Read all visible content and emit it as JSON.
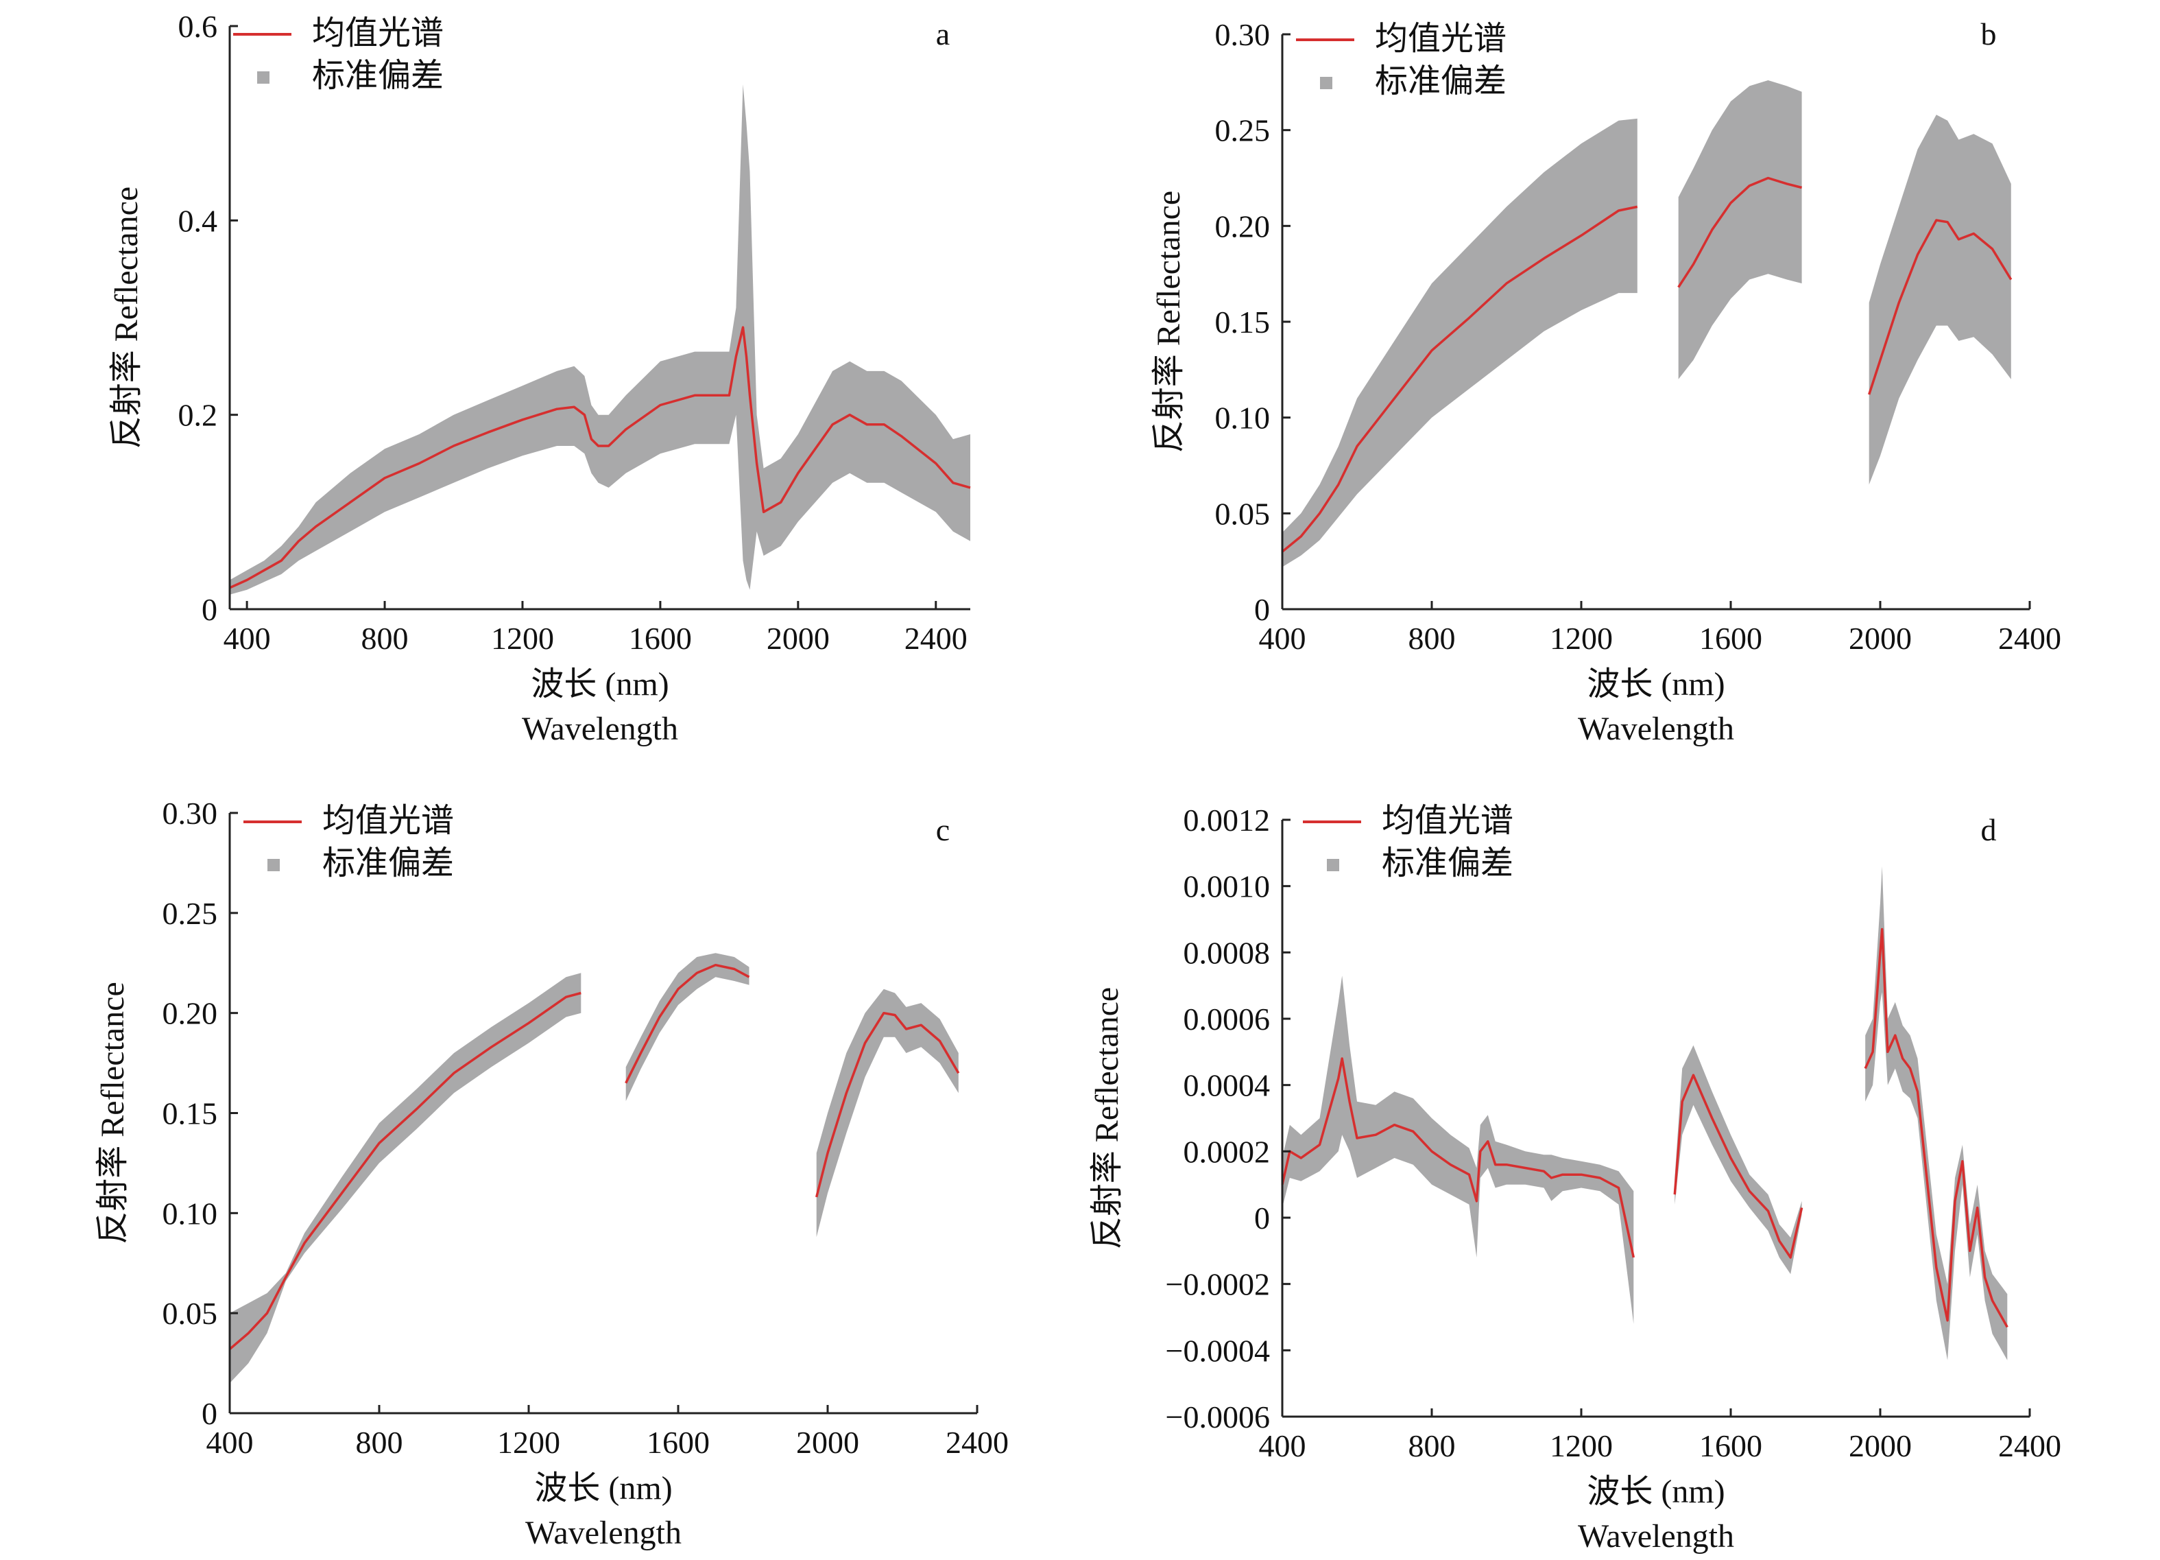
{
  "colors": {
    "mean": "#d62f2f",
    "std": "#a9a9aa",
    "axis": "#222222"
  },
  "chart_data": [
    {
      "type": "area",
      "panel_label": "a",
      "xlabel": "波长 (nm)",
      "xlabel2": "Wavelength",
      "ylabel": "反射率 Reflectance",
      "legend": [
        "均值光谱",
        "标准偏差"
      ],
      "legend_position": "top-left",
      "xlim": [
        350,
        2500
      ],
      "ylim": [
        0,
        0.6
      ],
      "xticks": [
        400,
        800,
        1200,
        1600,
        2000,
        2400
      ],
      "xtick_labels": [
        "400",
        "800",
        "1200",
        "1600",
        "2000",
        "2400"
      ],
      "yticks": [
        0,
        0.2,
        0.4,
        0.6
      ],
      "ytick_labels": [
        "0",
        "0.2",
        "0.4",
        "0.6"
      ],
      "segments": [
        {
          "x": [
            350,
            400,
            450,
            500,
            550,
            600,
            700,
            800,
            900,
            1000,
            1100,
            1200,
            1300,
            1350,
            1380,
            1400,
            1420,
            1450,
            1500,
            1600,
            1700,
            1800,
            1820,
            1840,
            1850,
            1860,
            1880,
            1900,
            1950,
            2000,
            2100,
            2150,
            2200,
            2250,
            2300,
            2400,
            2450,
            2500
          ],
          "mean": [
            0.022,
            0.03,
            0.04,
            0.05,
            0.07,
            0.085,
            0.11,
            0.135,
            0.15,
            0.168,
            0.182,
            0.195,
            0.206,
            0.208,
            0.2,
            0.175,
            0.168,
            0.168,
            0.185,
            0.21,
            0.22,
            0.22,
            0.26,
            0.29,
            0.26,
            0.22,
            0.15,
            0.1,
            0.11,
            0.14,
            0.19,
            0.2,
            0.19,
            0.19,
            0.178,
            0.15,
            0.13,
            0.125
          ],
          "upper": [
            0.03,
            0.04,
            0.05,
            0.065,
            0.085,
            0.11,
            0.14,
            0.165,
            0.18,
            0.2,
            0.215,
            0.23,
            0.245,
            0.25,
            0.24,
            0.21,
            0.2,
            0.2,
            0.22,
            0.255,
            0.265,
            0.265,
            0.31,
            0.54,
            0.5,
            0.45,
            0.2,
            0.145,
            0.155,
            0.18,
            0.245,
            0.255,
            0.245,
            0.245,
            0.235,
            0.2,
            0.175,
            0.18
          ],
          "lower": [
            0.015,
            0.02,
            0.028,
            0.036,
            0.05,
            0.06,
            0.08,
            0.1,
            0.115,
            0.13,
            0.145,
            0.158,
            0.168,
            0.168,
            0.16,
            0.14,
            0.13,
            0.125,
            0.14,
            0.16,
            0.17,
            0.17,
            0.2,
            0.05,
            0.03,
            0.02,
            0.08,
            0.055,
            0.065,
            0.09,
            0.13,
            0.14,
            0.13,
            0.13,
            0.12,
            0.1,
            0.08,
            0.07
          ]
        }
      ]
    },
    {
      "type": "area",
      "panel_label": "b",
      "xlabel": "波长 (nm)",
      "xlabel2": "Wavelength",
      "ylabel": "反射率 Reflectance",
      "legend": [
        "均值光谱",
        "标准偏差"
      ],
      "legend_position": "top-left",
      "xlim": [
        400,
        2400
      ],
      "ylim": [
        0,
        0.3
      ],
      "xticks": [
        400,
        800,
        1200,
        1600,
        2000,
        2400
      ],
      "xtick_labels": [
        "400",
        "800",
        "1200",
        "1600",
        "2000",
        "2400"
      ],
      "yticks": [
        0,
        0.05,
        0.1,
        0.15,
        0.2,
        0.25,
        0.3
      ],
      "ytick_labels": [
        "0",
        "0.05",
        "0.10",
        "0.15",
        "0.20",
        "0.25",
        "0.30"
      ],
      "segments": [
        {
          "x": [
            400,
            450,
            500,
            550,
            600,
            700,
            800,
            900,
            1000,
            1100,
            1200,
            1300,
            1350
          ],
          "mean": [
            0.03,
            0.038,
            0.05,
            0.065,
            0.085,
            0.11,
            0.135,
            0.152,
            0.17,
            0.183,
            0.195,
            0.208,
            0.21
          ],
          "upper": [
            0.04,
            0.05,
            0.065,
            0.085,
            0.11,
            0.14,
            0.17,
            0.19,
            0.21,
            0.228,
            0.243,
            0.255,
            0.256
          ],
          "lower": [
            0.022,
            0.028,
            0.036,
            0.048,
            0.06,
            0.08,
            0.1,
            0.115,
            0.13,
            0.145,
            0.156,
            0.165,
            0.165
          ]
        },
        {
          "x": [
            1460,
            1500,
            1550,
            1600,
            1650,
            1700,
            1750,
            1790
          ],
          "mean": [
            0.168,
            0.18,
            0.198,
            0.212,
            0.221,
            0.225,
            0.222,
            0.22
          ],
          "upper": [
            0.215,
            0.23,
            0.25,
            0.265,
            0.273,
            0.276,
            0.273,
            0.27
          ],
          "lower": [
            0.12,
            0.13,
            0.148,
            0.162,
            0.172,
            0.175,
            0.172,
            0.17
          ]
        },
        {
          "x": [
            1970,
            2000,
            2050,
            2100,
            2150,
            2180,
            2210,
            2250,
            2300,
            2350
          ],
          "mean": [
            0.112,
            0.13,
            0.16,
            0.185,
            0.203,
            0.202,
            0.193,
            0.196,
            0.188,
            0.172
          ],
          "upper": [
            0.16,
            0.18,
            0.21,
            0.24,
            0.258,
            0.255,
            0.245,
            0.248,
            0.243,
            0.222
          ],
          "lower": [
            0.065,
            0.08,
            0.11,
            0.13,
            0.148,
            0.148,
            0.14,
            0.142,
            0.133,
            0.12
          ]
        }
      ]
    },
    {
      "type": "area",
      "panel_label": "c",
      "xlabel": "波长 (nm)",
      "xlabel2": "Wavelength",
      "ylabel": "反射率 Reflectance",
      "legend": [
        "均值光谱",
        "标准偏差"
      ],
      "legend_position": "top-left",
      "xlim": [
        400,
        2400
      ],
      "ylim": [
        0,
        0.3
      ],
      "xticks": [
        400,
        800,
        1200,
        1600,
        2000,
        2400
      ],
      "xtick_labels": [
        "400",
        "800",
        "1200",
        "1600",
        "2000",
        "2400"
      ],
      "yticks": [
        0,
        0.05,
        0.1,
        0.15,
        0.2,
        0.25,
        0.3
      ],
      "ytick_labels": [
        "0",
        "0.05",
        "0.10",
        "0.15",
        "0.20",
        "0.25",
        "0.30"
      ],
      "segments": [
        {
          "x": [
            400,
            450,
            500,
            550,
            600,
            700,
            800,
            900,
            1000,
            1100,
            1200,
            1300,
            1340
          ],
          "mean": [
            0.032,
            0.04,
            0.05,
            0.068,
            0.085,
            0.11,
            0.135,
            0.152,
            0.17,
            0.183,
            0.195,
            0.208,
            0.21
          ],
          "upper": [
            0.05,
            0.055,
            0.06,
            0.07,
            0.09,
            0.118,
            0.145,
            0.162,
            0.18,
            0.193,
            0.205,
            0.218,
            0.22
          ],
          "lower": [
            0.015,
            0.025,
            0.04,
            0.066,
            0.08,
            0.102,
            0.125,
            0.142,
            0.16,
            0.173,
            0.185,
            0.198,
            0.2
          ]
        },
        {
          "x": [
            1460,
            1500,
            1550,
            1600,
            1650,
            1700,
            1750,
            1790
          ],
          "mean": [
            0.165,
            0.18,
            0.198,
            0.212,
            0.22,
            0.224,
            0.222,
            0.218
          ],
          "upper": [
            0.173,
            0.188,
            0.206,
            0.22,
            0.228,
            0.23,
            0.228,
            0.223
          ],
          "lower": [
            0.156,
            0.172,
            0.19,
            0.204,
            0.212,
            0.218,
            0.216,
            0.214
          ]
        },
        {
          "x": [
            1970,
            2000,
            2050,
            2100,
            2150,
            2180,
            2210,
            2250,
            2300,
            2350
          ],
          "mean": [
            0.108,
            0.13,
            0.16,
            0.185,
            0.2,
            0.199,
            0.192,
            0.194,
            0.186,
            0.17
          ],
          "upper": [
            0.13,
            0.15,
            0.18,
            0.2,
            0.212,
            0.21,
            0.203,
            0.205,
            0.197,
            0.18
          ],
          "lower": [
            0.088,
            0.11,
            0.14,
            0.168,
            0.188,
            0.188,
            0.18,
            0.183,
            0.175,
            0.16
          ]
        }
      ]
    },
    {
      "type": "area",
      "panel_label": "d",
      "xlabel": "波长 (nm)",
      "xlabel2": "Wavelength",
      "ylabel": "反射率 Reflectance",
      "legend": [
        "均值光谱",
        "标准偏差"
      ],
      "legend_position": "top-left",
      "xlim": [
        400,
        2400
      ],
      "ylim": [
        -0.0006,
        0.0012
      ],
      "xticks": [
        400,
        800,
        1200,
        1600,
        2000,
        2400
      ],
      "xtick_labels": [
        "400",
        "800",
        "1200",
        "1600",
        "2000",
        "2400"
      ],
      "yticks": [
        -0.0006,
        -0.0004,
        -0.0002,
        0,
        0.0002,
        0.0004,
        0.0006,
        0.0008,
        0.001,
        0.0012
      ],
      "ytick_labels": [
        "−0.0006",
        "−0.0004",
        "−0.0002",
        "0",
        "0.0002",
        "0.0004",
        "0.0006",
        "0.0008",
        "0.0010",
        "0.0012"
      ],
      "segments": [
        {
          "x": [
            400,
            420,
            450,
            500,
            550,
            560,
            580,
            600,
            650,
            700,
            750,
            800,
            850,
            900,
            920,
            930,
            950,
            970,
            1000,
            1050,
            1100,
            1120,
            1150,
            1200,
            1250,
            1300,
            1340
          ],
          "mean": [
            0.0001,
            0.0002,
            0.00018,
            0.00022,
            0.00042,
            0.00048,
            0.00035,
            0.00024,
            0.00025,
            0.00028,
            0.00026,
            0.0002,
            0.00016,
            0.00013,
            5e-05,
            0.0002,
            0.00023,
            0.00016,
            0.00016,
            0.00015,
            0.00014,
            0.00012,
            0.00013,
            0.00013,
            0.00012,
            9e-05,
            -0.00012
          ],
          "upper": [
            0.00018,
            0.00028,
            0.00025,
            0.0003,
            0.00065,
            0.00073,
            0.00052,
            0.00035,
            0.00034,
            0.00038,
            0.00036,
            0.0003,
            0.00025,
            0.00021,
            0.00015,
            0.00028,
            0.00031,
            0.00023,
            0.00022,
            0.0002,
            0.00019,
            0.00019,
            0.00018,
            0.00017,
            0.00016,
            0.00014,
            8e-05
          ],
          "lower": [
            3e-05,
            0.00012,
            0.00011,
            0.00014,
            0.0002,
            0.00025,
            0.0002,
            0.00012,
            0.00015,
            0.00018,
            0.00016,
            0.0001,
            7e-05,
            4e-05,
            -0.00012,
            0.00012,
            0.00015,
            9e-05,
            0.0001,
            0.0001,
            9e-05,
            5e-05,
            8e-05,
            9e-05,
            8e-05,
            4e-05,
            -0.00032
          ]
        },
        {
          "x": [
            1450,
            1470,
            1500,
            1550,
            1600,
            1650,
            1700,
            1730,
            1760,
            1790
          ],
          "mean": [
            7e-05,
            0.00035,
            0.00043,
            0.0003,
            0.00018,
            8e-05,
            2e-05,
            -7e-05,
            -0.00012,
            3e-05
          ],
          "upper": [
            0.00012,
            0.00045,
            0.00052,
            0.00038,
            0.00025,
            0.00013,
            7e-05,
            -2e-05,
            -6e-05,
            5e-05
          ],
          "lower": [
            4e-05,
            0.00025,
            0.00034,
            0.00022,
            0.00011,
            3e-05,
            -4e-05,
            -0.00012,
            -0.00017,
            1e-05
          ]
        },
        {
          "x": [
            1960,
            1980,
            2000,
            2005,
            2020,
            2040,
            2060,
            2080,
            2100,
            2150,
            2180,
            2200,
            2220,
            2240,
            2260,
            2280,
            2300,
            2340
          ],
          "mean": [
            0.00045,
            0.0005,
            0.0008,
            0.00087,
            0.0005,
            0.00055,
            0.00048,
            0.00045,
            0.00038,
            -0.00015,
            -0.00031,
            5e-05,
            0.00017,
            -0.0001,
            3e-05,
            -0.00018,
            -0.00025,
            -0.00033
          ],
          "upper": [
            0.00055,
            0.0006,
            0.00095,
            0.00106,
            0.0006,
            0.00065,
            0.00058,
            0.00055,
            0.00048,
            -5e-05,
            -0.0002,
            0.00012,
            0.00022,
            -2e-05,
            0.0001,
            -0.0001,
            -0.00017,
            -0.00023
          ],
          "lower": [
            0.00035,
            0.0004,
            0.00065,
            0.00068,
            0.0004,
            0.00045,
            0.00038,
            0.00036,
            0.0003,
            -0.00025,
            -0.00043,
            -0.0001,
            0.0001,
            -0.00018,
            -5e-05,
            -0.00025,
            -0.00035,
            -0.00043
          ]
        }
      ]
    }
  ]
}
